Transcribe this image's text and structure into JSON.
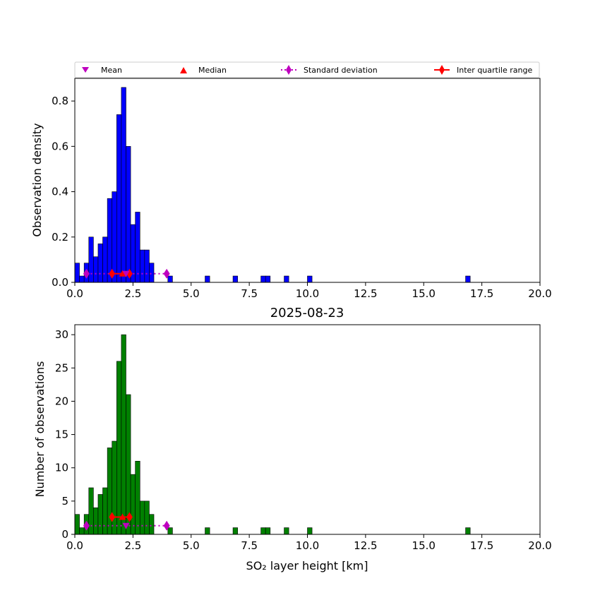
{
  "colors": {
    "density_bars": "#0000ff",
    "count_bars": "#008000",
    "bar_edge": "#000000",
    "mean": "#bf00bf",
    "median": "#ff0000",
    "std": "#bf00bf",
    "iqr": "#ff0000"
  },
  "legend": {
    "mean": "Mean",
    "median": "Median",
    "std": "Standard deviation",
    "iqr": "Inter quartile range",
    "placement": "above top panel, full width"
  },
  "chart_data": [
    {
      "type": "bar",
      "panel": "top",
      "title": "",
      "xlabel": "",
      "ylabel": "Observation density",
      "xlim": [
        0,
        20
      ],
      "ylim": [
        0,
        0.9
      ],
      "xticks": [
        0,
        2.5,
        5,
        7.5,
        10,
        12.5,
        15,
        17.5,
        20
      ],
      "xtick_labels": [
        "0.0",
        "2.5",
        "5.0",
        "7.5",
        "10.0",
        "12.5",
        "15.0",
        "17.5",
        "20.0"
      ],
      "yticks": [
        0,
        0.2,
        0.4,
        0.6,
        0.8
      ],
      "ytick_labels": [
        "0.0",
        "0.2",
        "0.4",
        "0.6",
        "0.8"
      ],
      "bin_width": 0.2,
      "bin_starts": [
        0.0,
        0.2,
        0.4,
        0.6,
        0.8,
        1.0,
        1.2,
        1.4,
        1.6,
        1.8,
        2.0,
        2.2,
        2.4,
        2.6,
        2.8,
        3.0,
        3.2,
        4.0,
        5.6,
        6.8,
        8.0,
        8.2,
        9.0,
        10.0,
        16.8
      ],
      "values": [
        0.085,
        0.028,
        0.085,
        0.2,
        0.113,
        0.17,
        0.2,
        0.37,
        0.4,
        0.74,
        0.86,
        0.6,
        0.255,
        0.31,
        0.143,
        0.143,
        0.085,
        0.028,
        0.028,
        0.028,
        0.028,
        0.028,
        0.028,
        0.028,
        0.028
      ],
      "stats_y": 0.038,
      "mean_x": 2.2,
      "median_x": 2.05,
      "std_range": [
        0.5,
        3.95
      ],
      "iqr_range": [
        1.6,
        2.35
      ]
    },
    {
      "type": "bar",
      "panel": "bottom",
      "title": "2025-08-23",
      "xlabel": "SO₂ layer height [km]",
      "ylabel": "Number of observations",
      "xlim": [
        0,
        20
      ],
      "ylim": [
        0,
        31.5
      ],
      "xticks": [
        0,
        2.5,
        5,
        7.5,
        10,
        12.5,
        15,
        17.5,
        20
      ],
      "xtick_labels": [
        "0.0",
        "2.5",
        "5.0",
        "7.5",
        "10.0",
        "12.5",
        "15.0",
        "17.5",
        "20.0"
      ],
      "yticks": [
        0,
        5,
        10,
        15,
        20,
        25,
        30
      ],
      "ytick_labels": [
        "0",
        "5",
        "10",
        "15",
        "20",
        "25",
        "30"
      ],
      "bin_width": 0.2,
      "bin_starts": [
        0.0,
        0.2,
        0.4,
        0.6,
        0.8,
        1.0,
        1.2,
        1.4,
        1.6,
        1.8,
        2.0,
        2.2,
        2.4,
        2.6,
        2.8,
        3.0,
        3.2,
        4.0,
        5.6,
        6.8,
        8.0,
        8.2,
        9.0,
        10.0,
        16.8
      ],
      "values": [
        3,
        1,
        3,
        7,
        4,
        6,
        7,
        13,
        14,
        26,
        30,
        21,
        9,
        11,
        5,
        5,
        3,
        1,
        1,
        1,
        1,
        1,
        1,
        1,
        1
      ],
      "stats_y": 1.3,
      "mean_x": 2.2,
      "median_x": 2.05,
      "std_range": [
        0.5,
        3.95
      ],
      "iqr_range": [
        1.6,
        2.35
      ],
      "iqr_y": 2.6
    }
  ]
}
